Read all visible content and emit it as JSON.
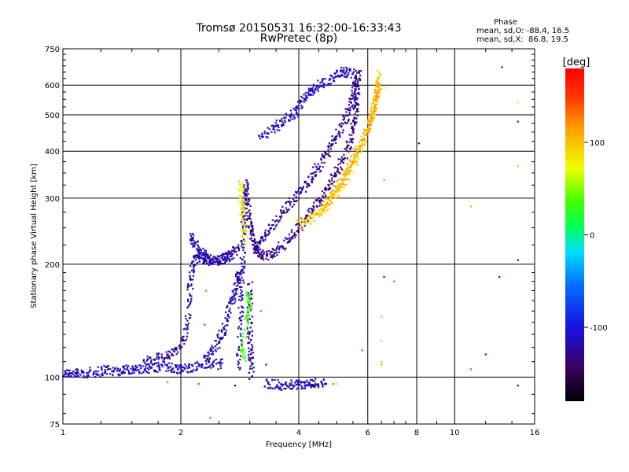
{
  "chart_data": {
    "type": "scatter",
    "title": "Tromsø 20150531 16:32:00-16:33:43",
    "subtitle": "RwPretec (8p)",
    "xlabel": "Frequency [MHz]",
    "ylabel": "Stationary phase Virtual Height [km]",
    "x_scale": "log",
    "y_scale": "log",
    "xlim": [
      1,
      16
    ],
    "ylim": [
      75,
      750
    ],
    "x_ticks": [
      1,
      2,
      4,
      6,
      8,
      10,
      16
    ],
    "x_tick_labels": [
      "1",
      "2",
      "4",
      "6",
      "8",
      "10",
      "16"
    ],
    "y_ticks": [
      75,
      100,
      200,
      300,
      400,
      500,
      600,
      750
    ],
    "y_tick_labels": [
      "75",
      "100",
      "200",
      "300",
      "400",
      "500",
      "600",
      "750"
    ],
    "grid": true,
    "phase_box": {
      "heading": "Phase",
      "line_o": "mean, sd,O: -88.4, 16.5",
      "line_x": "mean, sd,X:  86.8, 19.5"
    },
    "colorbar": {
      "label": "[deg]",
      "range": [
        -180,
        180
      ],
      "ticks": [
        100,
        0,
        -100
      ],
      "tick_labels": [
        "100",
        "0",
        "-100"
      ]
    },
    "traces": [
      {
        "phase": -115,
        "points": [
          [
            1.0,
            102
          ],
          [
            1.03,
            103
          ],
          [
            1.07,
            102
          ],
          [
            1.12,
            102
          ],
          [
            1.17,
            103
          ],
          [
            1.22,
            103
          ],
          [
            1.28,
            105
          ],
          [
            1.33,
            104
          ],
          [
            1.4,
            104
          ],
          [
            1.46,
            105
          ],
          [
            1.52,
            105
          ],
          [
            1.58,
            104
          ],
          [
            1.65,
            106
          ],
          [
            1.72,
            106
          ],
          [
            1.8,
            107
          ],
          [
            1.88,
            106
          ],
          [
            1.95,
            106
          ],
          [
            2.02,
            105
          ],
          [
            2.1,
            106
          ],
          [
            2.2,
            107
          ],
          [
            2.32,
            108
          ],
          [
            2.45,
            108
          ],
          [
            2.55,
            109
          ]
        ]
      },
      {
        "phase": -122,
        "points": [
          [
            1.6,
            110
          ],
          [
            1.7,
            112
          ],
          [
            1.8,
            113
          ],
          [
            1.88,
            115
          ],
          [
            1.96,
            118
          ],
          [
            2.04,
            125
          ],
          [
            2.08,
            140
          ],
          [
            2.1,
            160
          ],
          [
            2.12,
            180
          ],
          [
            2.14,
            195
          ],
          [
            2.18,
            205
          ],
          [
            2.22,
            210
          ],
          [
            2.27,
            215
          ],
          [
            2.33,
            208
          ],
          [
            2.4,
            205
          ],
          [
            2.48,
            205
          ],
          [
            2.56,
            207
          ],
          [
            2.64,
            210
          ],
          [
            2.72,
            215
          ],
          [
            2.8,
            222
          ]
        ]
      },
      {
        "phase": -118,
        "points": [
          [
            2.12,
            240
          ],
          [
            2.16,
            230
          ],
          [
            2.2,
            220
          ],
          [
            2.25,
            210
          ],
          [
            2.3,
            205
          ],
          [
            2.38,
            204
          ],
          [
            2.46,
            205
          ],
          [
            2.54,
            206
          ],
          [
            2.62,
            208
          ],
          [
            2.7,
            212
          ]
        ]
      },
      {
        "phase": -120,
        "points": [
          [
            2.3,
            112
          ],
          [
            2.38,
            115
          ],
          [
            2.45,
            120
          ],
          [
            2.52,
            128
          ],
          [
            2.58,
            135
          ],
          [
            2.63,
            145
          ],
          [
            2.68,
            155
          ],
          [
            2.72,
            165
          ],
          [
            2.76,
            175
          ],
          [
            2.8,
            185
          ],
          [
            2.84,
            190
          ]
        ]
      },
      {
        "phase": -112,
        "points": [
          [
            2.8,
            105
          ],
          [
            2.82,
            120
          ],
          [
            2.84,
            140
          ],
          [
            2.85,
            160
          ],
          [
            2.86,
            180
          ],
          [
            2.87,
            200
          ],
          [
            2.88,
            225
          ],
          [
            2.89,
            250
          ],
          [
            2.9,
            275
          ],
          [
            2.91,
            300
          ],
          [
            2.93,
            320
          ],
          [
            2.95,
            330
          ]
        ]
      },
      {
        "phase": -130,
        "points": [
          [
            2.95,
            300
          ],
          [
            2.97,
            280
          ],
          [
            3.0,
            260
          ],
          [
            3.03,
            245
          ],
          [
            3.07,
            230
          ],
          [
            3.12,
            220
          ],
          [
            3.18,
            212
          ],
          [
            3.25,
            210
          ],
          [
            3.35,
            212
          ],
          [
            3.45,
            215
          ],
          [
            3.55,
            220
          ],
          [
            3.7,
            228
          ],
          [
            3.85,
            238
          ],
          [
            4.0,
            250
          ],
          [
            4.15,
            262
          ],
          [
            4.3,
            275
          ],
          [
            4.45,
            290
          ],
          [
            4.6,
            305
          ],
          [
            4.75,
            322
          ],
          [
            4.9,
            340
          ],
          [
            5.05,
            360
          ],
          [
            5.2,
            385
          ],
          [
            5.35,
            410
          ],
          [
            5.45,
            440
          ],
          [
            5.52,
            470
          ],
          [
            5.57,
            500
          ],
          [
            5.6,
            530
          ],
          [
            5.62,
            560
          ],
          [
            5.64,
            590
          ],
          [
            5.66,
            620
          ],
          [
            5.68,
            650
          ]
        ]
      },
      {
        "phase": -128,
        "points": [
          [
            3.1,
            220
          ],
          [
            3.2,
            230
          ],
          [
            3.3,
            240
          ],
          [
            3.45,
            255
          ],
          [
            3.6,
            270
          ],
          [
            3.75,
            285
          ],
          [
            3.9,
            300
          ],
          [
            4.05,
            315
          ],
          [
            4.2,
            330
          ],
          [
            4.35,
            348
          ],
          [
            4.5,
            365
          ],
          [
            4.65,
            385
          ],
          [
            4.8,
            405
          ],
          [
            4.95,
            430
          ],
          [
            5.1,
            455
          ],
          [
            5.25,
            485
          ],
          [
            5.38,
            520
          ],
          [
            5.48,
            555
          ],
          [
            5.55,
            590
          ],
          [
            5.6,
            625
          ]
        ]
      },
      {
        "phase": -125,
        "points": [
          [
            3.0,
            175
          ],
          [
            3.0,
            160
          ],
          [
            3.0,
            145
          ],
          [
            3.0,
            130
          ],
          [
            3.01,
            120
          ],
          [
            3.02,
            110
          ],
          [
            3.03,
            100
          ]
        ]
      },
      {
        "phase": -110,
        "points": [
          [
            3.2,
            440
          ],
          [
            3.35,
            450
          ],
          [
            3.5,
            465
          ],
          [
            3.65,
            480
          ],
          [
            3.8,
            495
          ],
          [
            3.95,
            510
          ],
          [
            4.05,
            530
          ],
          [
            4.15,
            555
          ],
          [
            4.25,
            575
          ],
          [
            4.38,
            590
          ],
          [
            4.52,
            600
          ],
          [
            4.7,
            610
          ],
          [
            4.9,
            625
          ],
          [
            5.05,
            640
          ],
          [
            5.2,
            650
          ],
          [
            5.35,
            648
          ],
          [
            5.5,
            645
          ]
        ]
      },
      {
        "phase": -115,
        "points": [
          [
            3.3,
            96
          ],
          [
            3.45,
            96
          ],
          [
            3.6,
            95
          ],
          [
            3.75,
            96
          ],
          [
            3.9,
            95
          ],
          [
            4.05,
            96
          ],
          [
            4.2,
            95
          ],
          [
            4.35,
            96
          ],
          [
            4.5,
            97
          ],
          [
            4.7,
            96
          ]
        ]
      },
      {
        "phase": 95,
        "points": [
          [
            4.0,
            255
          ],
          [
            4.15,
            258
          ],
          [
            4.3,
            265
          ],
          [
            4.45,
            272
          ],
          [
            4.6,
            280
          ],
          [
            4.75,
            290
          ],
          [
            4.9,
            302
          ],
          [
            5.05,
            315
          ],
          [
            5.2,
            330
          ],
          [
            5.35,
            348
          ],
          [
            5.5,
            368
          ],
          [
            5.65,
            390
          ],
          [
            5.8,
            415
          ],
          [
            5.95,
            440
          ],
          [
            6.05,
            470
          ],
          [
            6.15,
            500
          ],
          [
            6.25,
            535
          ],
          [
            6.32,
            570
          ],
          [
            6.38,
            610
          ],
          [
            6.42,
            645
          ]
        ]
      },
      {
        "phase": 110,
        "points": [
          [
            4.6,
            285
          ],
          [
            4.8,
            300
          ],
          [
            5.0,
            320
          ],
          [
            5.2,
            340
          ],
          [
            5.4,
            365
          ],
          [
            5.6,
            395
          ],
          [
            5.8,
            425
          ],
          [
            6.0,
            460
          ],
          [
            6.15,
            495
          ],
          [
            6.28,
            530
          ],
          [
            6.36,
            570
          ],
          [
            6.42,
            600
          ]
        ]
      },
      {
        "phase": 80,
        "points": [
          [
            2.85,
            330
          ],
          [
            2.85,
            310
          ],
          [
            2.86,
            290
          ],
          [
            2.87,
            270
          ],
          [
            2.9,
            250
          ],
          [
            2.92,
            230
          ]
        ]
      },
      {
        "phase": 35,
        "points": [
          [
            2.95,
            170
          ],
          [
            3.0,
            160
          ],
          [
            2.98,
            150
          ],
          [
            2.92,
            140
          ],
          [
            2.85,
            118
          ],
          [
            2.9,
            112
          ]
        ]
      }
    ],
    "outliers": [
      {
        "x": 13.2,
        "y": 670,
        "phase": -110
      },
      {
        "x": 14.5,
        "y": 540,
        "phase": 60
      },
      {
        "x": 14.5,
        "y": 480,
        "phase": -110
      },
      {
        "x": 14.5,
        "y": 365,
        "phase": 100
      },
      {
        "x": 14.5,
        "y": 205,
        "phase": -130
      },
      {
        "x": 14.5,
        "y": 95,
        "phase": -140
      },
      {
        "x": 13.0,
        "y": 185,
        "phase": -115
      },
      {
        "x": 12.0,
        "y": 115,
        "phase": -115
      },
      {
        "x": 11.0,
        "y": 285,
        "phase": 110
      },
      {
        "x": 11.0,
        "y": 105,
        "phase": 140
      },
      {
        "x": 8.1,
        "y": 420,
        "phase": -135
      },
      {
        "x": 6.6,
        "y": 185,
        "phase": -110
      },
      {
        "x": 7.0,
        "y": 180,
        "phase": 140
      },
      {
        "x": 6.5,
        "y": 145,
        "phase": 100
      },
      {
        "x": 6.5,
        "y": 125,
        "phase": 100
      },
      {
        "x": 6.5,
        "y": 110,
        "phase": 100
      },
      {
        "x": 6.5,
        "y": 108,
        "phase": 110
      },
      {
        "x": 6.6,
        "y": 335,
        "phase": 20
      },
      {
        "x": 6.6,
        "y": 590,
        "phase": 60
      },
      {
        "x": 5.8,
        "y": 118,
        "phase": 140
      },
      {
        "x": 2.38,
        "y": 78,
        "phase": 140
      },
      {
        "x": 2.22,
        "y": 96,
        "phase": 150
      },
      {
        "x": 2.3,
        "y": 138,
        "phase": 150
      },
      {
        "x": 2.32,
        "y": 170,
        "phase": 140
      },
      {
        "x": 4.9,
        "y": 96,
        "phase": 140
      },
      {
        "x": 5.0,
        "y": 96,
        "phase": 60
      },
      {
        "x": 2.75,
        "y": 95,
        "phase": -130
      },
      {
        "x": 3.2,
        "y": 150,
        "phase": 140
      },
      {
        "x": 3.3,
        "y": 108,
        "phase": -115
      },
      {
        "x": 1.85,
        "y": 97,
        "phase": 140
      },
      {
        "x": 4.1,
        "y": 97,
        "phase": -150
      }
    ]
  }
}
